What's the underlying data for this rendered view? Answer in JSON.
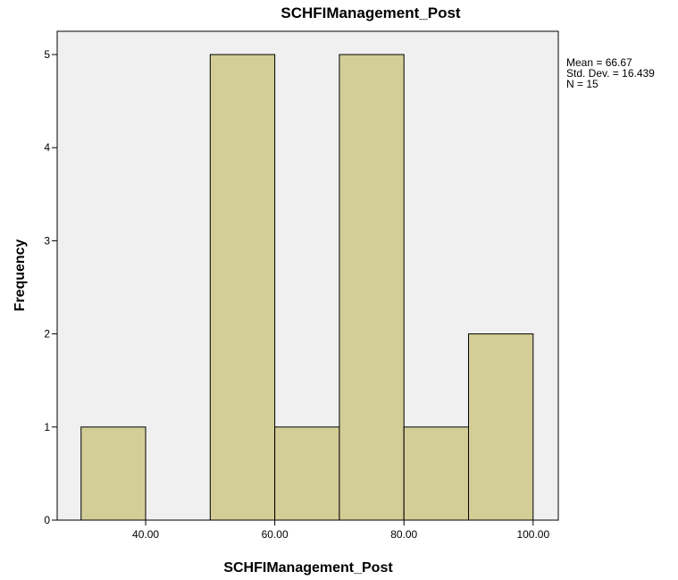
{
  "chart_data": {
    "type": "histogram",
    "title": "SCHFIManagement_Post",
    "x_label": "SCHFIManagement_Post",
    "y_label": "Frequency",
    "bins": [
      30,
      40,
      50,
      60,
      70,
      80,
      90,
      100
    ],
    "counts": [
      1,
      0,
      5,
      1,
      5,
      1,
      2
    ],
    "color": "#d3ce97",
    "xlim": [
      26.3,
      103.9
    ],
    "xticks": [
      {
        "value": 40,
        "label": "40.00"
      },
      {
        "value": 60,
        "label": "60.00"
      },
      {
        "value": 80,
        "label": "80.00"
      },
      {
        "value": 100,
        "label": "100.00"
      }
    ],
    "ylim": [
      0,
      5.25
    ],
    "yticks": [
      0,
      1,
      2,
      3,
      4,
      5
    ],
    "annotations": [
      "Mean = 66.67",
      "Std. Dev. = 16.439",
      "N = 15"
    ]
  }
}
